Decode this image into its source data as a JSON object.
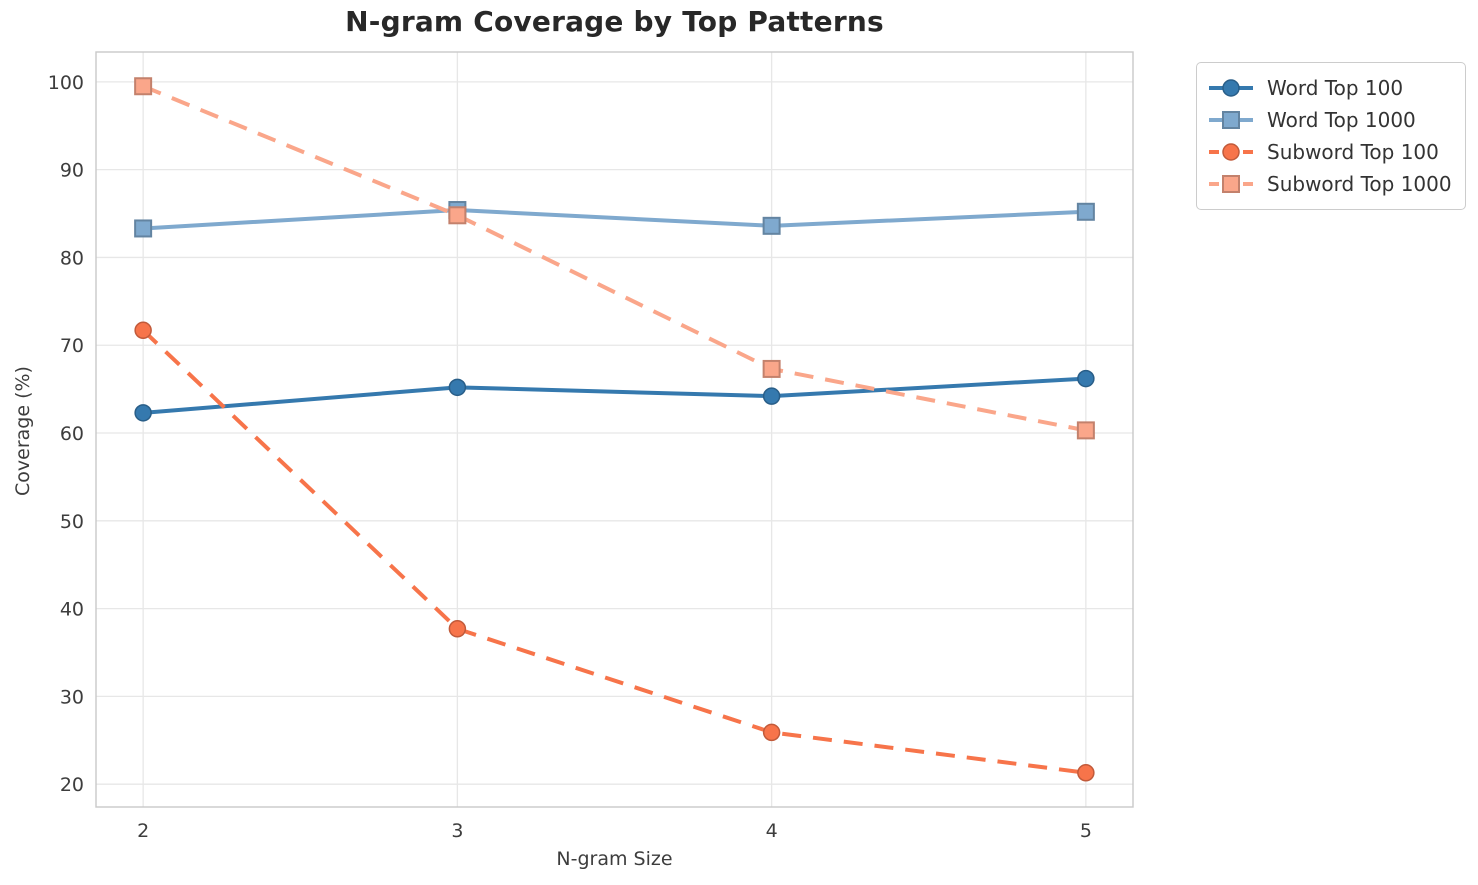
{
  "chart_data": {
    "type": "line",
    "title": "N-gram Coverage by Top Patterns",
    "xlabel": "N-gram Size",
    "ylabel": "Coverage (%)",
    "x": [
      2,
      3,
      4,
      5
    ],
    "x_tick_labels": [
      "2",
      "3",
      "4",
      "5"
    ],
    "y_ticks": [
      20,
      30,
      40,
      50,
      60,
      70,
      80,
      90,
      100
    ],
    "xlim": [
      1.85,
      5.15
    ],
    "ylim": [
      17.4,
      103.4
    ],
    "grid": true,
    "legend_position": "outside-upper-right",
    "series": [
      {
        "name": "Word Top 100",
        "values": [
          62.3,
          65.2,
          64.2,
          66.2
        ],
        "color": "#3579AE",
        "line_style": "solid",
        "marker": "circle"
      },
      {
        "name": "Word Top 1000",
        "values": [
          83.3,
          85.4,
          83.6,
          85.2
        ],
        "color": "#7FA9CE",
        "line_style": "solid",
        "marker": "square"
      },
      {
        "name": "Subword Top 100",
        "values": [
          71.7,
          37.7,
          25.9,
          21.3
        ],
        "color": "#F7744A",
        "line_style": "dashed",
        "marker": "circle"
      },
      {
        "name": "Subword Top 1000",
        "values": [
          99.5,
          84.8,
          67.3,
          60.3
        ],
        "color": "#FAA68A",
        "line_style": "dashed",
        "marker": "square"
      }
    ],
    "colors": {
      "grid": "#e7e7e7",
      "spine": "#c9c9c9",
      "tick_label": "#3d3d3d",
      "title": "#282828",
      "legend_text": "#333333",
      "background": "#ffffff"
    }
  }
}
